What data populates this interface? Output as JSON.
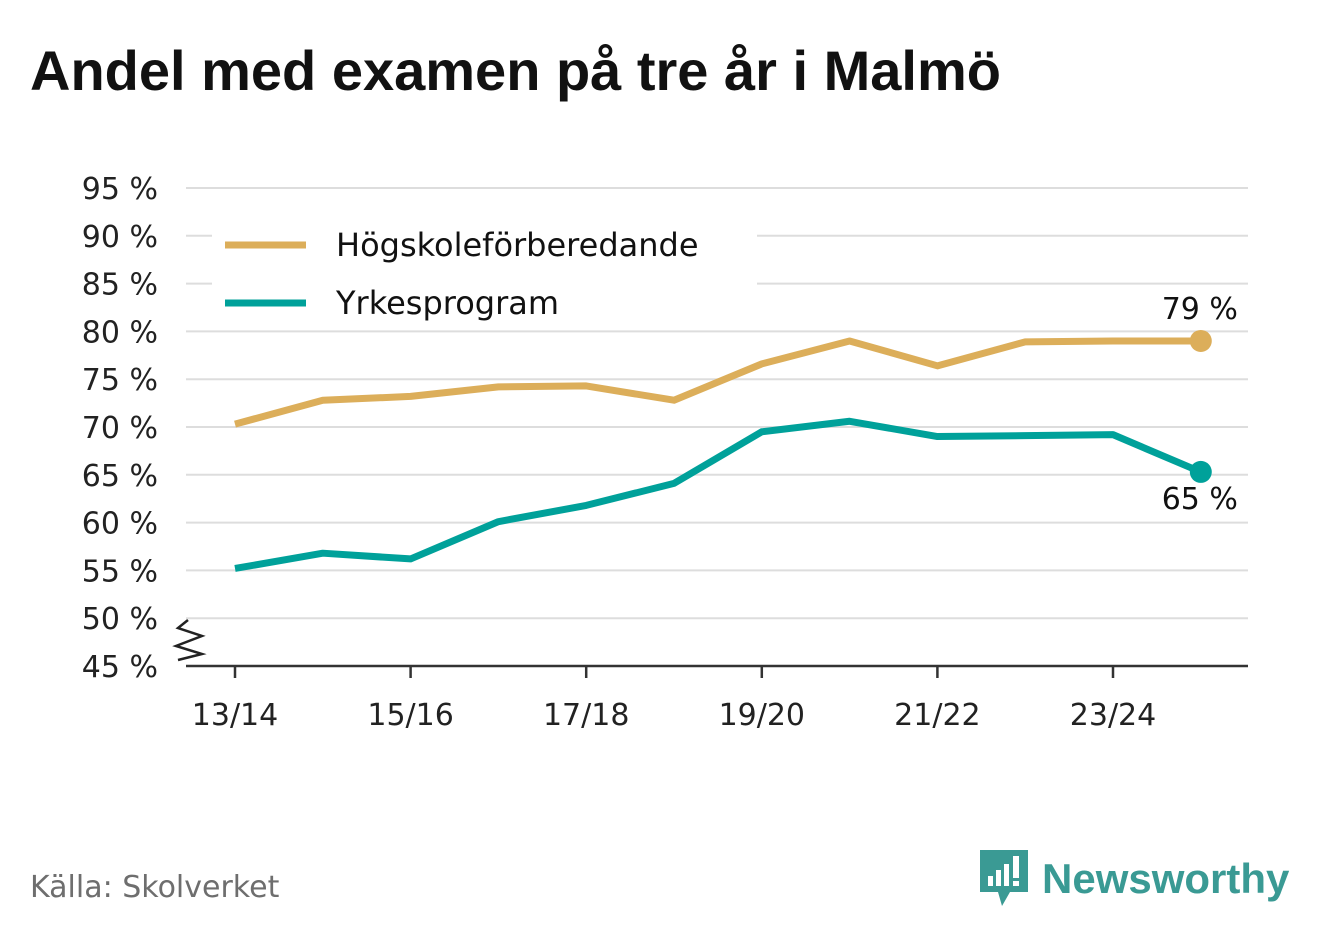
{
  "title": "Andel med examen på tre år i Malmö",
  "source": "Källa: Skolverket",
  "brand": {
    "name": "Newsworthy",
    "icon": "newsworthy-logo-icon",
    "color": "#3a9a94"
  },
  "chart_data": {
    "type": "line",
    "title": "Andel med examen på tre år i Malmö",
    "x": [
      "13/14",
      "14/15",
      "15/16",
      "16/17",
      "17/18",
      "18/19",
      "19/20",
      "20/21",
      "21/22",
      "22/23",
      "23/24",
      "24/25"
    ],
    "x_tick_labels": [
      "13/14",
      "15/16",
      "17/18",
      "19/20",
      "21/22",
      "23/24"
    ],
    "y_ticks": [
      45,
      50,
      55,
      60,
      65,
      70,
      75,
      80,
      85,
      90,
      95
    ],
    "y_tick_labels": [
      "45 %",
      "50 %",
      "55 %",
      "60 %",
      "65 %",
      "70 %",
      "75 %",
      "80 %",
      "85 %",
      "90 %",
      "95 %"
    ],
    "ylim": [
      45,
      95
    ],
    "y_axis_break": true,
    "grid": true,
    "legend_position": "top-left",
    "series": [
      {
        "name": "Högskoleförberedande",
        "color": "#dcae5a",
        "values": [
          70.3,
          72.8,
          73.2,
          74.2,
          74.3,
          72.8,
          76.6,
          79.0,
          76.4,
          78.9,
          79.0,
          79.0
        ],
        "end_label": "79 %"
      },
      {
        "name": "Yrkesprogram",
        "color": "#00a19a",
        "values": [
          55.2,
          56.8,
          56.2,
          60.1,
          61.8,
          64.1,
          69.5,
          70.6,
          69.0,
          69.1,
          69.2,
          65.3
        ],
        "end_label": "65 %"
      }
    ]
  }
}
